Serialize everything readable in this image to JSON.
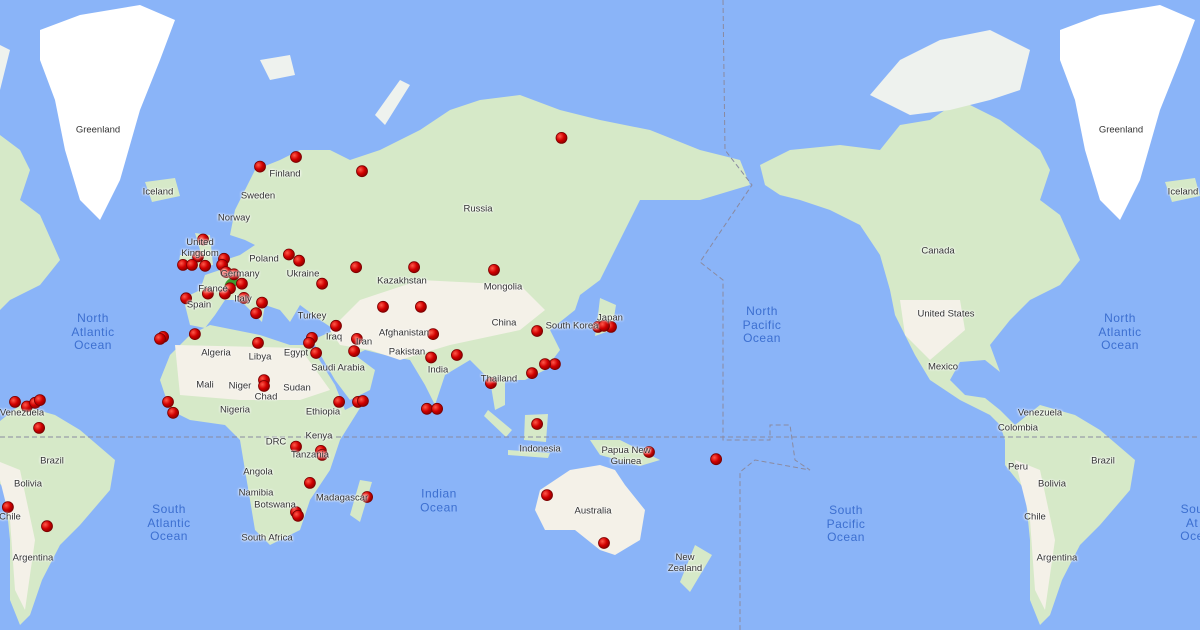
{
  "map": {
    "colors": {
      "water": "#8ab4f8",
      "land": "#f4f1e8",
      "vegetation": "#cfe6c3",
      "ice": "#ffffff",
      "marker": "#d10000",
      "marker_border": "#7a0000",
      "highlight_marker": "#3f9b2f",
      "boundary": "#8a8aa0"
    },
    "countries": {
      "greenland": "Greenland",
      "iceland": "Iceland",
      "finland": "Finland",
      "sweden": "Sweden",
      "norway": "Norway",
      "russia": "Russia",
      "uk_1": "United",
      "uk_2": "Kingdom",
      "poland": "Poland",
      "germany": "Germany",
      "ukraine": "Ukraine",
      "kazakhstan": "Kazakhstan",
      "mongolia": "Mongolia",
      "france": "France",
      "spain": "Spain",
      "italy": "Italy",
      "turkey": "Turkey",
      "china": "China",
      "south_korea": "South Korea",
      "japan": "Japan",
      "afghanistan": "Afghanistan",
      "iraq": "Iraq",
      "iran": "Iran",
      "algeria": "Algeria",
      "libya": "Libya",
      "egypt": "Egypt",
      "pakistan": "Pakistan",
      "saudi_arabia": "Saudi Arabia",
      "india": "India",
      "thailand": "Thailand",
      "mali": "Mali",
      "niger": "Niger",
      "sudan": "Sudan",
      "chad": "Chad",
      "nigeria": "Nigeria",
      "ethiopia": "Ethiopia",
      "venezuela": "Venezuela",
      "kenya": "Kenya",
      "drc": "DRC",
      "tanzania": "Tanzania",
      "indonesia": "Indonesia",
      "png_1": "Papua New",
      "png_2": "Guinea",
      "brazil": "Brazil",
      "angola": "Angola",
      "bolivia": "Bolivia",
      "namibia": "Namibia",
      "botswana": "Botswana",
      "madagascar": "Madagascar",
      "australia": "Australia",
      "chile": "Chile",
      "south_africa": "South Africa",
      "argentina": "Argentina",
      "nz_1": "New",
      "nz_2": "Zealand",
      "canada": "Canada",
      "united_states": "United States",
      "mexico": "Mexico",
      "colombia": "Colombia",
      "peru": "Peru"
    },
    "oceans": {
      "north_atlantic": [
        "North",
        "Atlantic",
        "Ocean"
      ],
      "south_atlantic": [
        "South",
        "Atlantic",
        "Ocean"
      ],
      "indian": [
        "Indian",
        "Ocean"
      ],
      "north_pacific": [
        "North",
        "Pacific",
        "Ocean"
      ],
      "south_pacific": [
        "South",
        "Pacific",
        "Ocean"
      ],
      "south_atlantic_clipped": [
        "Sou",
        "At",
        "Oce"
      ]
    },
    "highlighted_marker": {
      "lat": 47.5,
      "lon": 6.4
    },
    "markers": [
      [
        72,
        123
      ],
      [
        69.8,
        29.3
      ],
      [
        68.6,
        16.6
      ],
      [
        68,
        52.6
      ],
      [
        57,
        -3.5
      ],
      [
        53.6,
        -5.3
      ],
      [
        51.8,
        -10.6
      ],
      [
        51.8,
        -7.4
      ],
      [
        51.6,
        -2.8
      ],
      [
        53.1,
        3.9
      ],
      [
        51.8,
        3.2
      ],
      [
        50.2,
        4.6
      ],
      [
        49.7,
        7.4
      ],
      [
        47.5,
        10.2
      ],
      [
        46.4,
        6.0
      ],
      [
        45.1,
        4.2
      ],
      [
        45.1,
        -1.8
      ],
      [
        54,
        26.8
      ],
      [
        52.7,
        30.4
      ],
      [
        51.3,
        50.5
      ],
      [
        51.3,
        71
      ],
      [
        50.7,
        99.2
      ],
      [
        47.5,
        38.5
      ],
      [
        42.8,
        17.3
      ],
      [
        44,
        10.9
      ],
      [
        40,
        15.2
      ],
      [
        43.9,
        -9.5
      ],
      [
        34.1,
        -6.4
      ],
      [
        33.3,
        -17.6
      ],
      [
        32.7,
        -18.7
      ],
      [
        41.7,
        60
      ],
      [
        41.7,
        73.4
      ],
      [
        36.5,
        43.4
      ],
      [
        32.7,
        50.8
      ],
      [
        34.1,
        77.7
      ],
      [
        33,
        34.9
      ],
      [
        31.5,
        33.9
      ],
      [
        29,
        49.8
      ],
      [
        28.4,
        36.4
      ],
      [
        27.8,
        86.1
      ],
      [
        27,
        77
      ],
      [
        35,
        114.4
      ],
      [
        36.2,
        135.9
      ],
      [
        36.2,
        140.5
      ],
      [
        36.5,
        138
      ],
      [
        24.9,
        120.7
      ],
      [
        24.9,
        117.2
      ],
      [
        22,
        112.6
      ],
      [
        18.7,
        98.1
      ],
      [
        31.5,
        15.9
      ],
      [
        19.7,
        18
      ],
      [
        17.7,
        18
      ],
      [
        12.3,
        -15.9
      ],
      [
        8.5,
        -14.1
      ],
      [
        12.3,
        44.5
      ],
      [
        12.3,
        51.2
      ],
      [
        12.6,
        52.9
      ],
      [
        9.9,
        75.5
      ],
      [
        9.9,
        79.1
      ],
      [
        4.6,
        114.4
      ],
      [
        12.3,
        -69.9
      ],
      [
        10.7,
        -65.7
      ],
      [
        12,
        -62.8
      ],
      [
        12.9,
        -61.1
      ],
      [
        3.2,
        -61.4
      ],
      [
        -3.4,
        29.3
      ],
      [
        -4.9,
        38.1
      ],
      [
        -6.3,
        38.5
      ],
      [
        -16,
        34.2
      ],
      [
        -20.7,
        54.4
      ],
      [
        -20.1,
        117.9
      ],
      [
        -25.6,
        29.3
      ],
      [
        -26.8,
        30
      ],
      [
        -35,
        138
      ],
      [
        -5.3,
        153.9
      ],
      [
        -7.8,
        177.6
      ],
      [
        -30,
        -58.6
      ],
      [
        -24,
        -72.4
      ]
    ]
  }
}
